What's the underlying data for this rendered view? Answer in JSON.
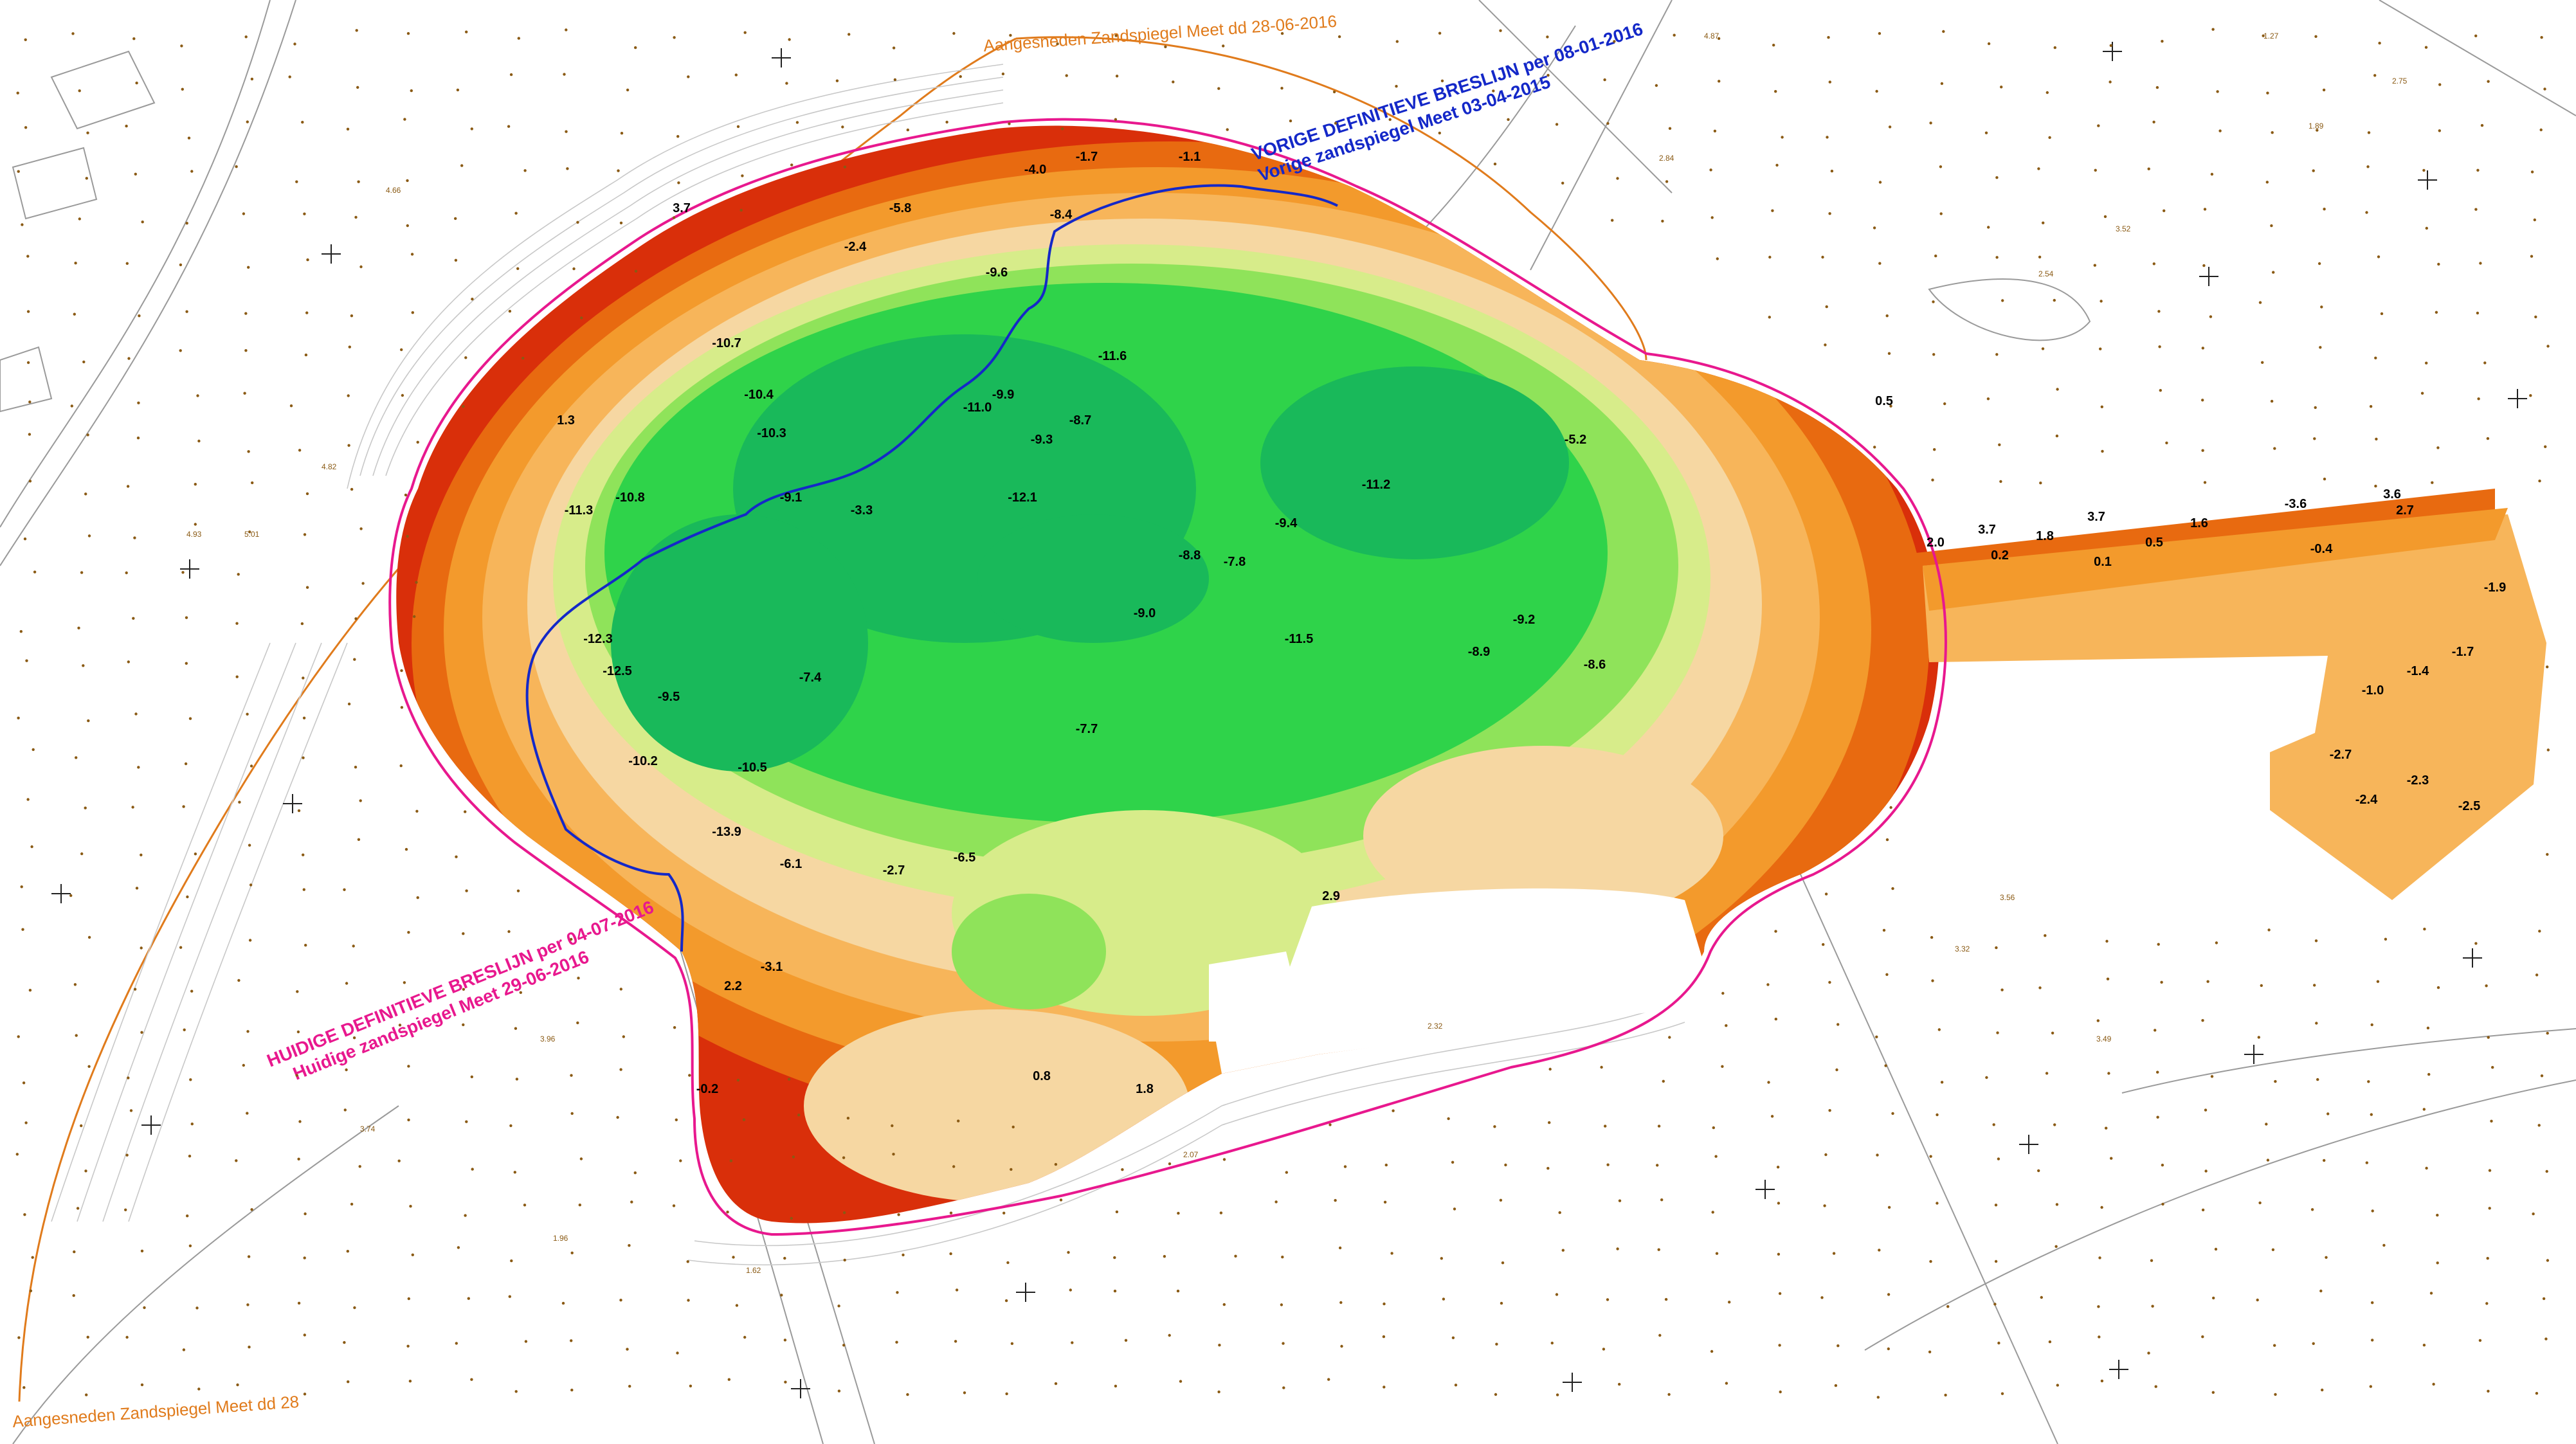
{
  "map": {
    "colors": {
      "background": "#ffffff",
      "green_deep": "#19b95a",
      "green": "#2fd34a",
      "green_light": "#8fe35a",
      "yellow_green": "#d7ec8a",
      "sand": "#f6d7a2",
      "orange_light": "#f7b55a",
      "orange": "#f39a2c",
      "orange_dark": "#e86a10",
      "red_edge": "#d92f0a",
      "pink_line": "#e8188e",
      "blue_line": "#1428c8",
      "brown_text": "#8a5a14",
      "contour_grey": "#c8c8c8",
      "base_orange_line": "#e07b1c"
    },
    "annotations": {
      "previous_line_title": "VORIGE DEFINITIEVE BRESLIJN per 08-01-2016",
      "previous_line_sub": "Vorige zandspiegel Meet 03-04-2015",
      "current_line_title": "HUIDIGE DEFINITIEVE BRESLIJN per 04-07-2016",
      "current_line_sub": "Huidige zandspiegel Meet 29-06-2016",
      "cut_top": "Aangesneden Zandspiegel Meet dd 28-06-2016",
      "cut_bottom": "Aangesneden Zandspiegel Meet dd 28"
    },
    "depth_values": [
      "-8.4",
      "-9.1",
      "-10.4",
      "-9.9",
      "-11.0",
      "-12.1",
      "-9.3",
      "-8.7",
      "-10.7",
      "-11.6",
      "-12.5",
      "-9.5",
      "-10.2",
      "-9.4",
      "-7.7",
      "-11.2",
      "-10.8",
      "-8.8",
      "-9.0",
      "-11.3",
      "-13.9",
      "-10.5",
      "-7.8",
      "-8.9",
      "-9.2",
      "-8.6",
      "-11.5",
      "-12.3",
      "-10.3",
      "-7.4",
      "-6.5",
      "-9.6",
      "-5.8",
      "-6.1",
      "-4.0",
      "-3.3",
      "-2.4",
      "-1.7",
      "-1.1",
      "0.5",
      "1.3",
      "-0.2",
      "2.9",
      "3.7",
      "2.2",
      "-3.1",
      "-2.7",
      "-5.2",
      "1.8",
      "0.8"
    ],
    "spot_heights": [
      "4.93",
      "5.01",
      "4.82",
      "3.96",
      "3.74",
      "2.07",
      "1.62",
      "1.96",
      "2.32",
      "4.87",
      "2.84",
      "3.32",
      "3.56",
      "3.52",
      "2.54",
      "1.27",
      "1.89",
      "2.75",
      "3.49",
      "4.66"
    ],
    "extension_values": [
      "2.0",
      "3.7",
      "0.2",
      "1.8",
      "3.7",
      "0.1",
      "0.5",
      "1.6",
      "-3.6",
      "2.7",
      "3.6",
      "-0.4",
      "-1.0",
      "-1.9",
      "-1.7",
      "-2.3",
      "-2.5",
      "-2.4",
      "-2.7",
      "-1.4"
    ]
  }
}
